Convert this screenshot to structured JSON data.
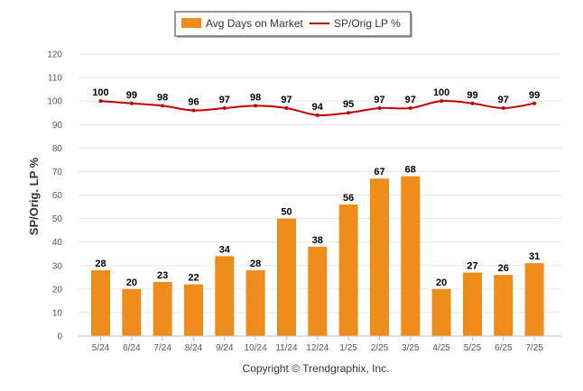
{
  "chart_data": {
    "type": "bar",
    "categories": [
      "5/24",
      "6/24",
      "7/24",
      "8/24",
      "9/24",
      "10/24",
      "11/24",
      "12/24",
      "1/25",
      "2/25",
      "3/25",
      "4/25",
      "5/25",
      "6/25",
      "7/25"
    ],
    "series": [
      {
        "name": "Avg Days on Market",
        "type": "bar",
        "color": "#EE8C1C",
        "values": [
          28,
          20,
          23,
          22,
          34,
          28,
          50,
          38,
          56,
          67,
          68,
          20,
          27,
          26,
          31
        ]
      },
      {
        "name": "SP/Orig LP %",
        "type": "line",
        "color": "#C00000",
        "values": [
          100,
          99,
          98,
          96,
          97,
          98,
          97,
          94,
          95,
          97,
          97,
          100,
          99,
          97,
          99
        ]
      }
    ],
    "ylabel": "SP/Orig. LP %",
    "ylim": [
      0,
      120
    ],
    "yticks": [
      0,
      10,
      20,
      30,
      40,
      50,
      60,
      70,
      80,
      90,
      100,
      110,
      120
    ],
    "grid": true,
    "legend_position": "top-center"
  },
  "footer": {
    "copyright": "Copyright © Trendgraphix, Inc."
  }
}
